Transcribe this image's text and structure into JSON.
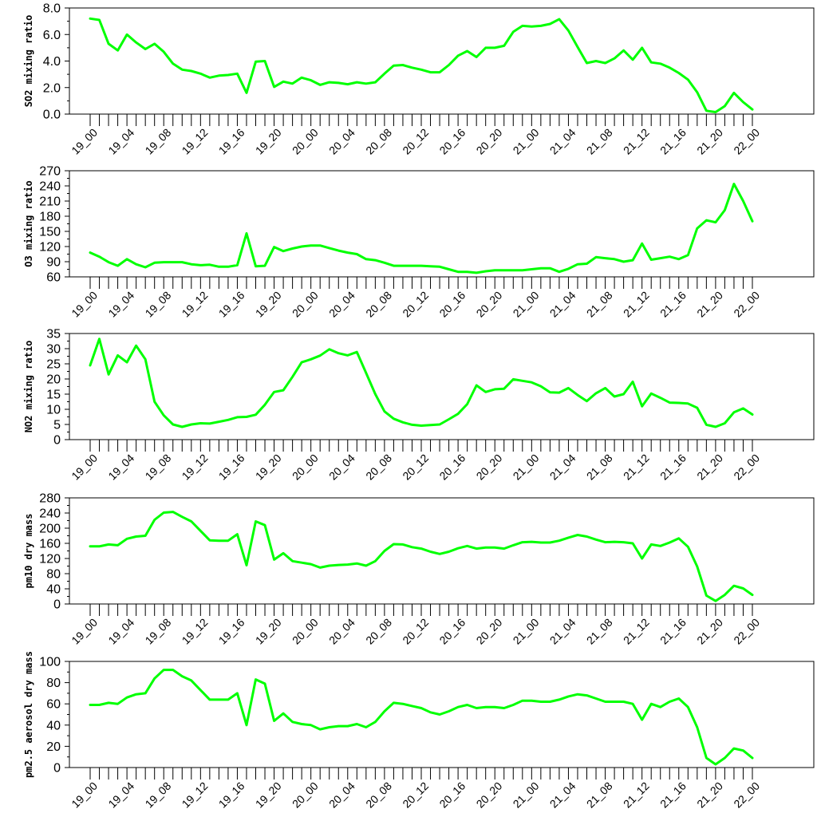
{
  "chart_data": [
    {
      "type": "line",
      "ylabel": "SO2 mixing ratio",
      "ylim": [
        0,
        8
      ],
      "yticks": [
        0,
        2,
        4,
        6,
        8
      ],
      "ytick_labels": [
        "0.0",
        "2.0",
        "4.0",
        "6.0",
        "8.0"
      ],
      "series": [
        {
          "color": "#00ff00",
          "values": [
            7.2,
            7.1,
            5.3,
            4.8,
            6.0,
            5.4,
            4.9,
            5.3,
            4.7,
            3.8,
            3.35,
            3.25,
            3.05,
            2.75,
            2.9,
            2.95,
            3.05,
            1.6,
            3.95,
            4.0,
            2.05,
            2.45,
            2.3,
            2.75,
            2.55,
            2.2,
            2.4,
            2.35,
            2.25,
            2.4,
            2.3,
            2.4,
            3.05,
            3.65,
            3.7,
            3.5,
            3.35,
            3.15,
            3.15,
            3.7,
            4.4,
            4.75,
            4.3,
            5.0,
            5.0,
            5.15,
            6.2,
            6.65,
            6.6,
            6.65,
            6.8,
            7.15,
            6.3,
            5.05,
            3.85,
            4.0,
            3.85,
            4.2,
            4.8,
            4.1,
            5.0,
            3.9,
            3.8,
            3.5,
            3.1,
            2.6,
            1.65,
            0.25,
            0.15,
            0.6,
            1.6,
            0.9,
            0.35
          ]
        }
      ]
    },
    {
      "type": "line",
      "ylabel": "O3 mixing ratio",
      "ylim": [
        60,
        270
      ],
      "yticks": [
        60,
        90,
        120,
        150,
        180,
        210,
        240,
        270
      ],
      "ytick_labels": [
        "60",
        "90",
        "120",
        "150",
        "180",
        "210",
        "240",
        "270"
      ],
      "series": [
        {
          "color": "#00ff00",
          "values": [
            108,
            100,
            89,
            82,
            95,
            85,
            79,
            88,
            89,
            89,
            89,
            85,
            83,
            84,
            80,
            80,
            83,
            146,
            81,
            82,
            119,
            111,
            116,
            120,
            122,
            122,
            117,
            112,
            108,
            105,
            95,
            93,
            88,
            82,
            82,
            82,
            82,
            81,
            80,
            75,
            70,
            70,
            68,
            71,
            73,
            73,
            73,
            73,
            75,
            77,
            77,
            70,
            76,
            85,
            86,
            99,
            97,
            95,
            90,
            93,
            126,
            94,
            97,
            100,
            95,
            103,
            156,
            172,
            168,
            192,
            244,
            210,
            170
          ]
        }
      ]
    },
    {
      "type": "line",
      "ylabel": "NO2 mixing ratio",
      "ylim": [
        0,
        35
      ],
      "yticks": [
        0,
        5,
        10,
        15,
        20,
        25,
        30,
        35
      ],
      "ytick_labels": [
        "0",
        "5",
        "10",
        "15",
        "20",
        "25",
        "30",
        "35"
      ],
      "series": [
        {
          "color": "#00ff00",
          "values": [
            24.5,
            33.2,
            21.5,
            27.8,
            25.5,
            31.0,
            26.5,
            12.5,
            8.0,
            5.0,
            4.2,
            5.0,
            5.4,
            5.3,
            5.9,
            6.5,
            7.4,
            7.5,
            8.2,
            11.5,
            15.7,
            16.3,
            20.7,
            25.5,
            26.5,
            27.7,
            29.8,
            28.5,
            27.8,
            28.9,
            22.0,
            15.0,
            9.3,
            6.9,
            5.7,
            4.9,
            4.6,
            4.8,
            5.0,
            6.7,
            8.5,
            11.7,
            17.9,
            15.7,
            16.6,
            16.8,
            19.9,
            19.4,
            18.9,
            17.6,
            15.6,
            15.5,
            17.0,
            14.7,
            12.7,
            15.3,
            17.0,
            14.2,
            15.0,
            19.1,
            11.0,
            15.2,
            13.8,
            12.2,
            12.1,
            11.9,
            10.5,
            4.9,
            4.2,
            5.4,
            9.0,
            10.3,
            8.3
          ]
        }
      ]
    },
    {
      "type": "line",
      "ylabel": "pm10 dry mass",
      "ylim": [
        0,
        280
      ],
      "yticks": [
        0,
        40,
        80,
        120,
        160,
        200,
        240,
        280
      ],
      "ytick_labels": [
        "0",
        "40",
        "80",
        "120",
        "160",
        "200",
        "240",
        "280"
      ],
      "series": [
        {
          "color": "#00ff00",
          "values": [
            152,
            152,
            157,
            155,
            172,
            178,
            180,
            222,
            241,
            243,
            230,
            218,
            193,
            168,
            167,
            167,
            184,
            102,
            218,
            208,
            117,
            134,
            113,
            109,
            105,
            96,
            101,
            103,
            104,
            107,
            101,
            113,
            140,
            158,
            157,
            150,
            146,
            138,
            132,
            138,
            147,
            153,
            146,
            149,
            149,
            146,
            155,
            163,
            164,
            162,
            162,
            167,
            175,
            182,
            178,
            170,
            163,
            164,
            163,
            160,
            120,
            157,
            153,
            162,
            173,
            151,
            99,
            22,
            8,
            24,
            48,
            41,
            24
          ]
        }
      ]
    },
    {
      "type": "line",
      "ylabel": "pm2.5 aerosol dry mass",
      "ylim": [
        0,
        100
      ],
      "yticks": [
        0,
        20,
        40,
        60,
        80,
        100
      ],
      "ytick_labels": [
        "0",
        "20",
        "40",
        "60",
        "80",
        "100"
      ],
      "series": [
        {
          "color": "#00ff00",
          "values": [
            59,
            59,
            61,
            60,
            66,
            69,
            70,
            84,
            92,
            92,
            86,
            82,
            73,
            64,
            64,
            64,
            70,
            40,
            83,
            79,
            44,
            51,
            43,
            41,
            40,
            36,
            38,
            39,
            39,
            41,
            38,
            43,
            53,
            61,
            60,
            58,
            56,
            52,
            50,
            53,
            57,
            59,
            56,
            57,
            57,
            56,
            59,
            63,
            63,
            62,
            62,
            64,
            67,
            69,
            68,
            65,
            62,
            62,
            62,
            60,
            45,
            60,
            57,
            62,
            65,
            57,
            38,
            9,
            3,
            9,
            18,
            16,
            9
          ]
        }
      ]
    }
  ],
  "x_tick_labels": [
    "19_00",
    "19_04",
    "19_08",
    "19_12",
    "19_16",
    "19_20",
    "20_00",
    "20_04",
    "20_08",
    "20_12",
    "20_16",
    "20_20",
    "21_00",
    "21_04",
    "21_08",
    "21_12",
    "21_16",
    "21_20",
    "22_00"
  ],
  "x_label_every": 4
}
